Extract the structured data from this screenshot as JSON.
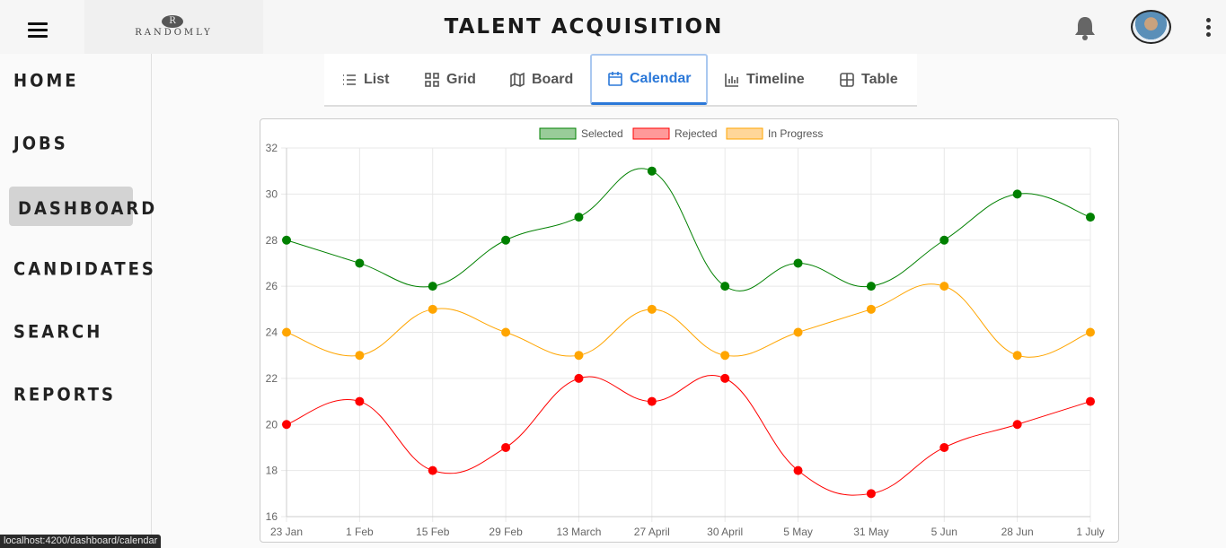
{
  "header": {
    "app_title": "TALENT ACQUISITION",
    "logo_mark": "R",
    "logo_text": "RANDOMLY",
    "menu_icon": "hamburger-icon",
    "notification_icon": "bell-icon",
    "more_icon": "kebab-menu-icon"
  },
  "sidebar": {
    "items": [
      {
        "label": "HOME"
      },
      {
        "label": "JOBS"
      },
      {
        "label": "DASHBOARD",
        "active": true
      },
      {
        "label": "CANDIDATES"
      },
      {
        "label": "SEARCH"
      },
      {
        "label": "REPORTS"
      }
    ]
  },
  "view_tabs": [
    {
      "label": "List",
      "icon": "list-icon"
    },
    {
      "label": "Grid",
      "icon": "grid-icon"
    },
    {
      "label": "Board",
      "icon": "map-icon"
    },
    {
      "label": "Calendar",
      "icon": "calendar-icon",
      "active": true
    },
    {
      "label": "Timeline",
      "icon": "bar-chart-icon"
    },
    {
      "label": "Table",
      "icon": "table-icon"
    }
  ],
  "colors": {
    "accent": "#2b78d8",
    "selected": "#008000",
    "rejected": "#ff0000",
    "in_progress": "#ffa500"
  },
  "chart_data": {
    "type": "line",
    "categories": [
      "23 Jan",
      "1 Feb",
      "15 Feb",
      "29 Feb",
      "13 March",
      "27 April",
      "30 April",
      "5 May",
      "31 May",
      "5 Jun",
      "28 Jun",
      "1 July"
    ],
    "series": [
      {
        "name": "Selected",
        "color": "#008000",
        "legend_fill": "#99cc99",
        "values": [
          28,
          27,
          26,
          28,
          29,
          31,
          26,
          27,
          26,
          28,
          30,
          29
        ]
      },
      {
        "name": "Rejected",
        "color": "#ff0000",
        "legend_fill": "#ff9999",
        "values": [
          20,
          21,
          18,
          19,
          22,
          21,
          22,
          18,
          17,
          19,
          20,
          21
        ]
      },
      {
        "name": "In Progress",
        "color": "#ffa500",
        "legend_fill": "#ffd699",
        "values": [
          24,
          23,
          25,
          24,
          23,
          25,
          23,
          24,
          25,
          26,
          23,
          24
        ]
      }
    ],
    "ylim": [
      16,
      32
    ],
    "yticks": [
      16,
      18,
      20,
      22,
      24,
      26,
      28,
      30,
      32
    ],
    "grid": true,
    "legend": "top-center",
    "title": "",
    "xlabel": "",
    "ylabel": ""
  },
  "status_bar": {
    "url": "localhost:4200/dashboard/calendar"
  }
}
